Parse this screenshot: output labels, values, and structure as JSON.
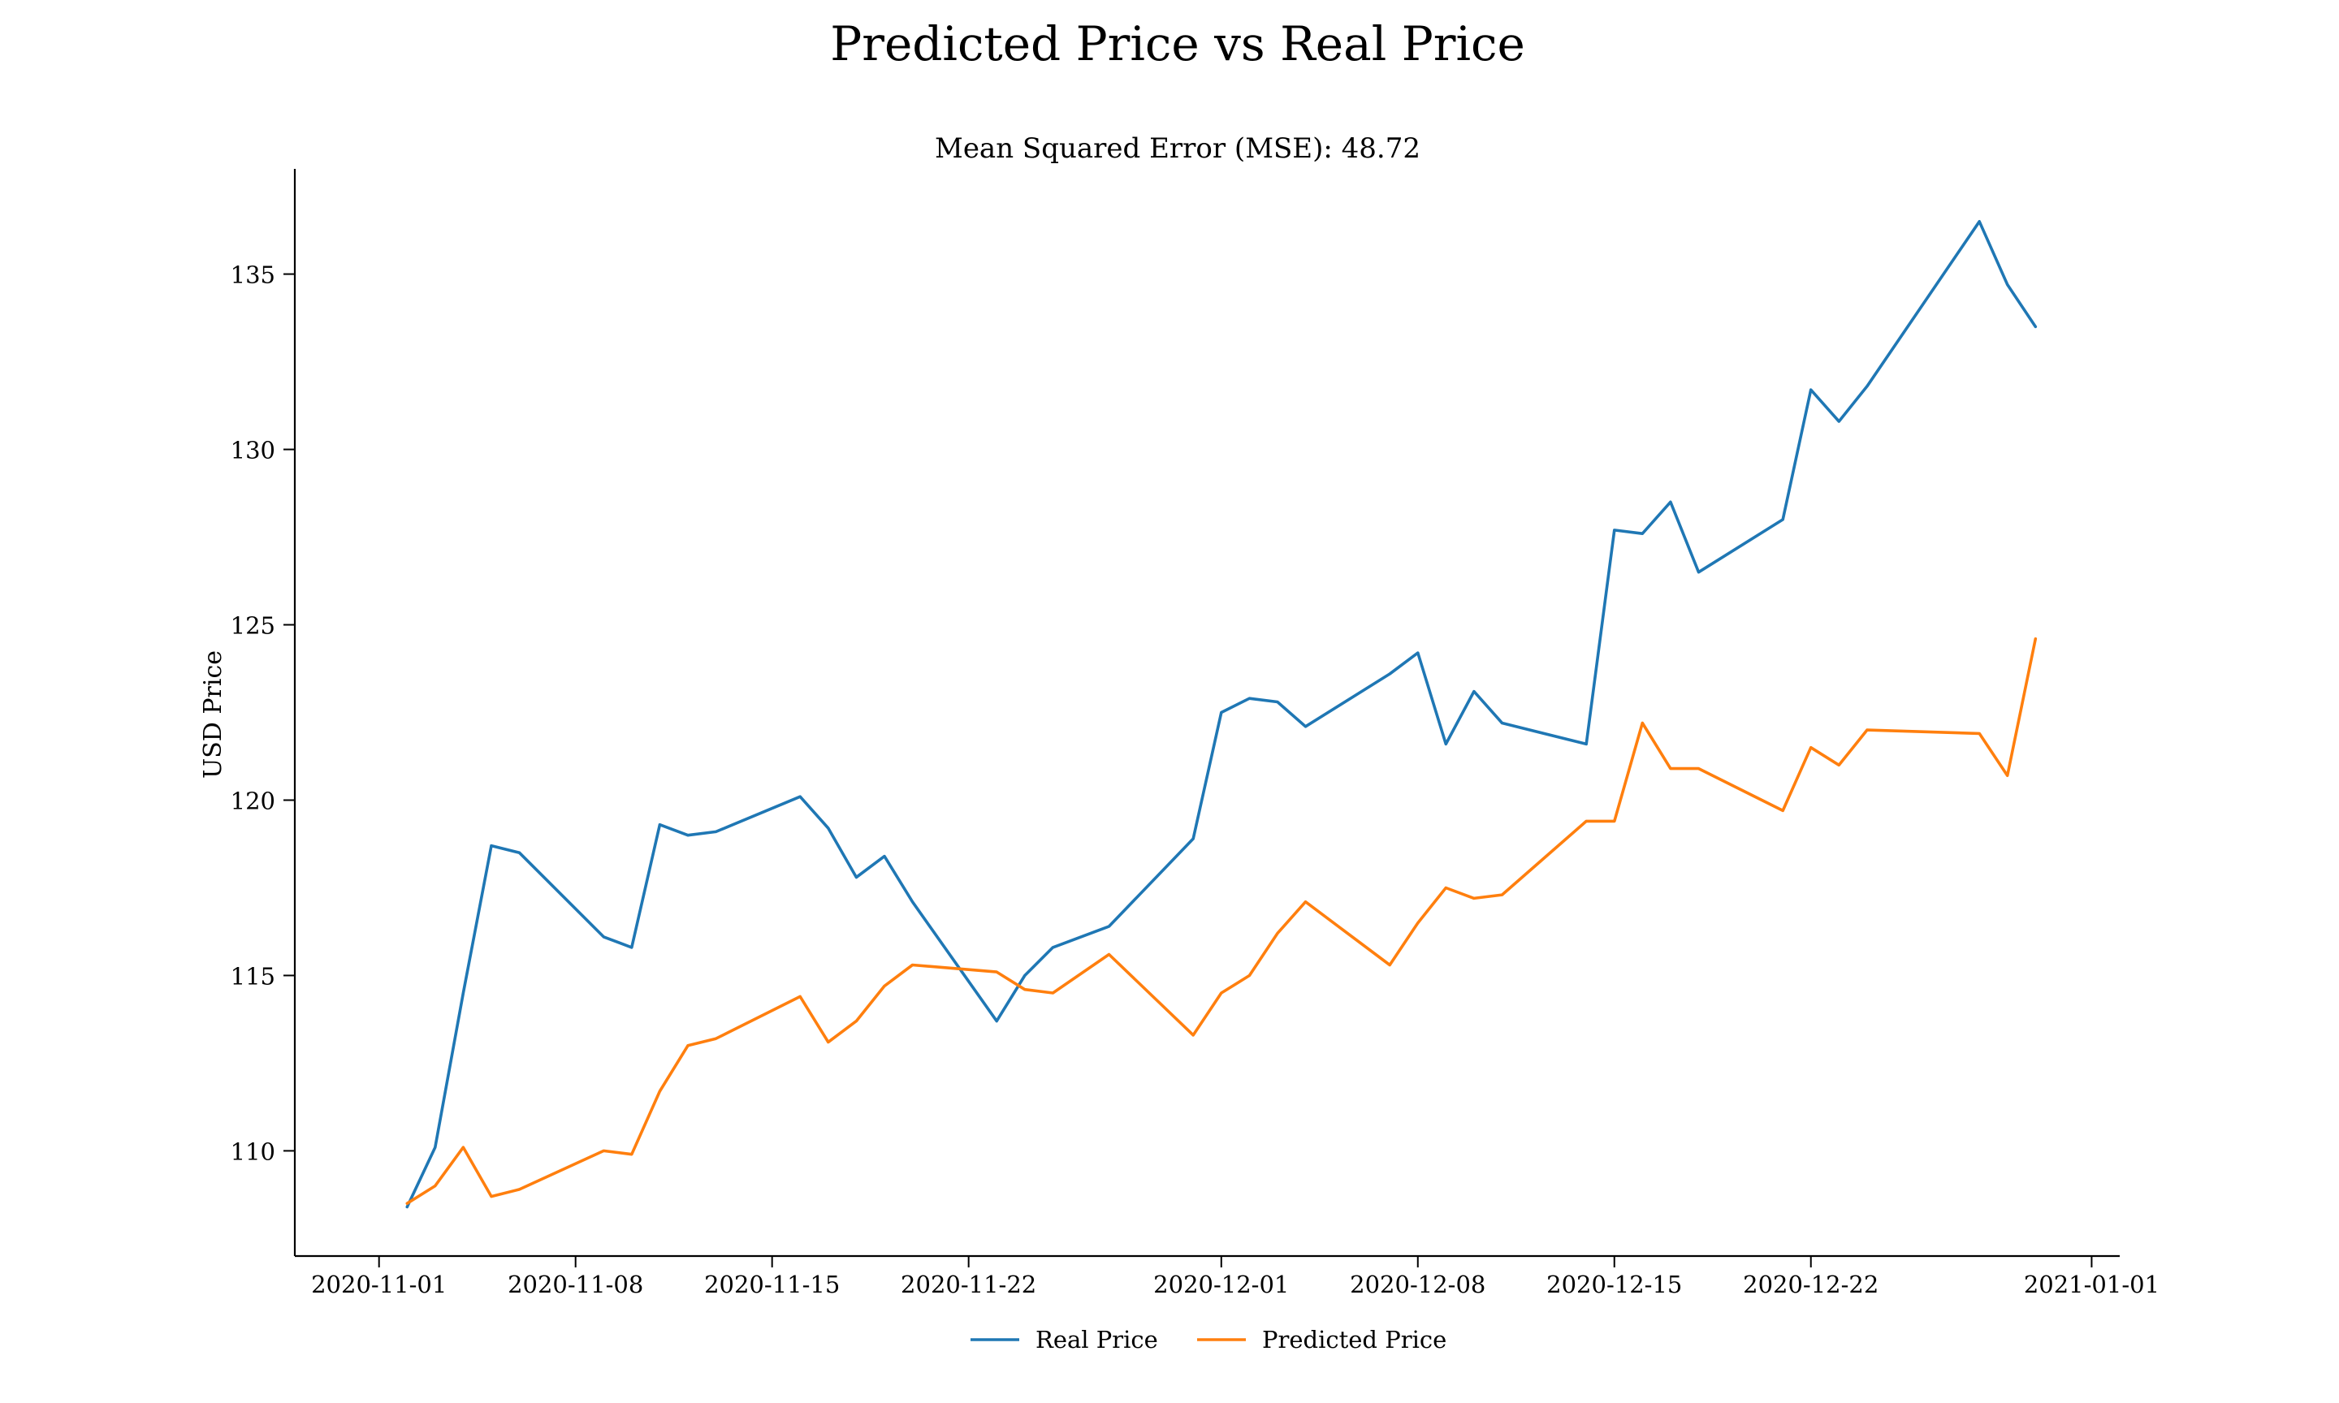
{
  "chart_data": {
    "type": "line",
    "title": "Predicted Price vs Real Price",
    "subtitle": "Mean Squared Error (MSE): 48.72",
    "xlabel": "",
    "ylabel": "USD Price",
    "xlim": [
      "2020-10-29",
      "2021-01-02"
    ],
    "ylim": [
      107,
      138
    ],
    "x_ticks": [
      "2020-11-01",
      "2020-11-08",
      "2020-11-15",
      "2020-11-22",
      "2020-12-01",
      "2020-12-08",
      "2020-12-15",
      "2020-12-22",
      "2021-01-01"
    ],
    "y_ticks": [
      110,
      115,
      120,
      125,
      130,
      135
    ],
    "grid": false,
    "legend_position": "bottom-center",
    "x": [
      "2020-11-02",
      "2020-11-03",
      "2020-11-04",
      "2020-11-05",
      "2020-11-06",
      "2020-11-09",
      "2020-11-10",
      "2020-11-11",
      "2020-11-12",
      "2020-11-13",
      "2020-11-16",
      "2020-11-17",
      "2020-11-18",
      "2020-11-19",
      "2020-11-20",
      "2020-11-23",
      "2020-11-24",
      "2020-11-25",
      "2020-11-27",
      "2020-11-30",
      "2020-12-01",
      "2020-12-02",
      "2020-12-03",
      "2020-12-04",
      "2020-12-07",
      "2020-12-08",
      "2020-12-09",
      "2020-12-10",
      "2020-12-11",
      "2020-12-14",
      "2020-12-15",
      "2020-12-16",
      "2020-12-17",
      "2020-12-18",
      "2020-12-21",
      "2020-12-22",
      "2020-12-23",
      "2020-12-24",
      "2020-12-28",
      "2020-12-29",
      "2020-12-30"
    ],
    "series": [
      {
        "name": "Real Price",
        "color": "#1f77b4",
        "values": [
          108.4,
          110.1,
          114.5,
          118.7,
          118.5,
          116.1,
          115.8,
          119.3,
          119.0,
          119.1,
          120.1,
          119.2,
          117.8,
          118.4,
          117.1,
          113.7,
          115.0,
          115.8,
          116.4,
          118.9,
          122.5,
          122.9,
          122.8,
          122.1,
          123.6,
          124.2,
          121.6,
          123.1,
          122.2,
          121.6,
          127.7,
          127.6,
          128.5,
          126.5,
          128.0,
          131.7,
          130.8,
          131.8,
          136.5,
          134.7,
          133.5
        ]
      },
      {
        "name": "Predicted Price",
        "color": "#ff7f0e",
        "values": [
          108.5,
          109.0,
          110.1,
          108.7,
          108.9,
          110.0,
          109.9,
          111.7,
          113.0,
          113.2,
          114.4,
          113.1,
          113.7,
          114.7,
          115.3,
          115.1,
          114.6,
          114.5,
          115.6,
          113.3,
          114.5,
          115.0,
          116.2,
          117.1,
          115.3,
          116.5,
          117.5,
          117.2,
          117.3,
          119.4,
          119.4,
          122.2,
          120.9,
          120.9,
          119.7,
          121.5,
          121.0,
          122.0,
          121.9,
          120.7,
          124.6
        ]
      }
    ]
  }
}
